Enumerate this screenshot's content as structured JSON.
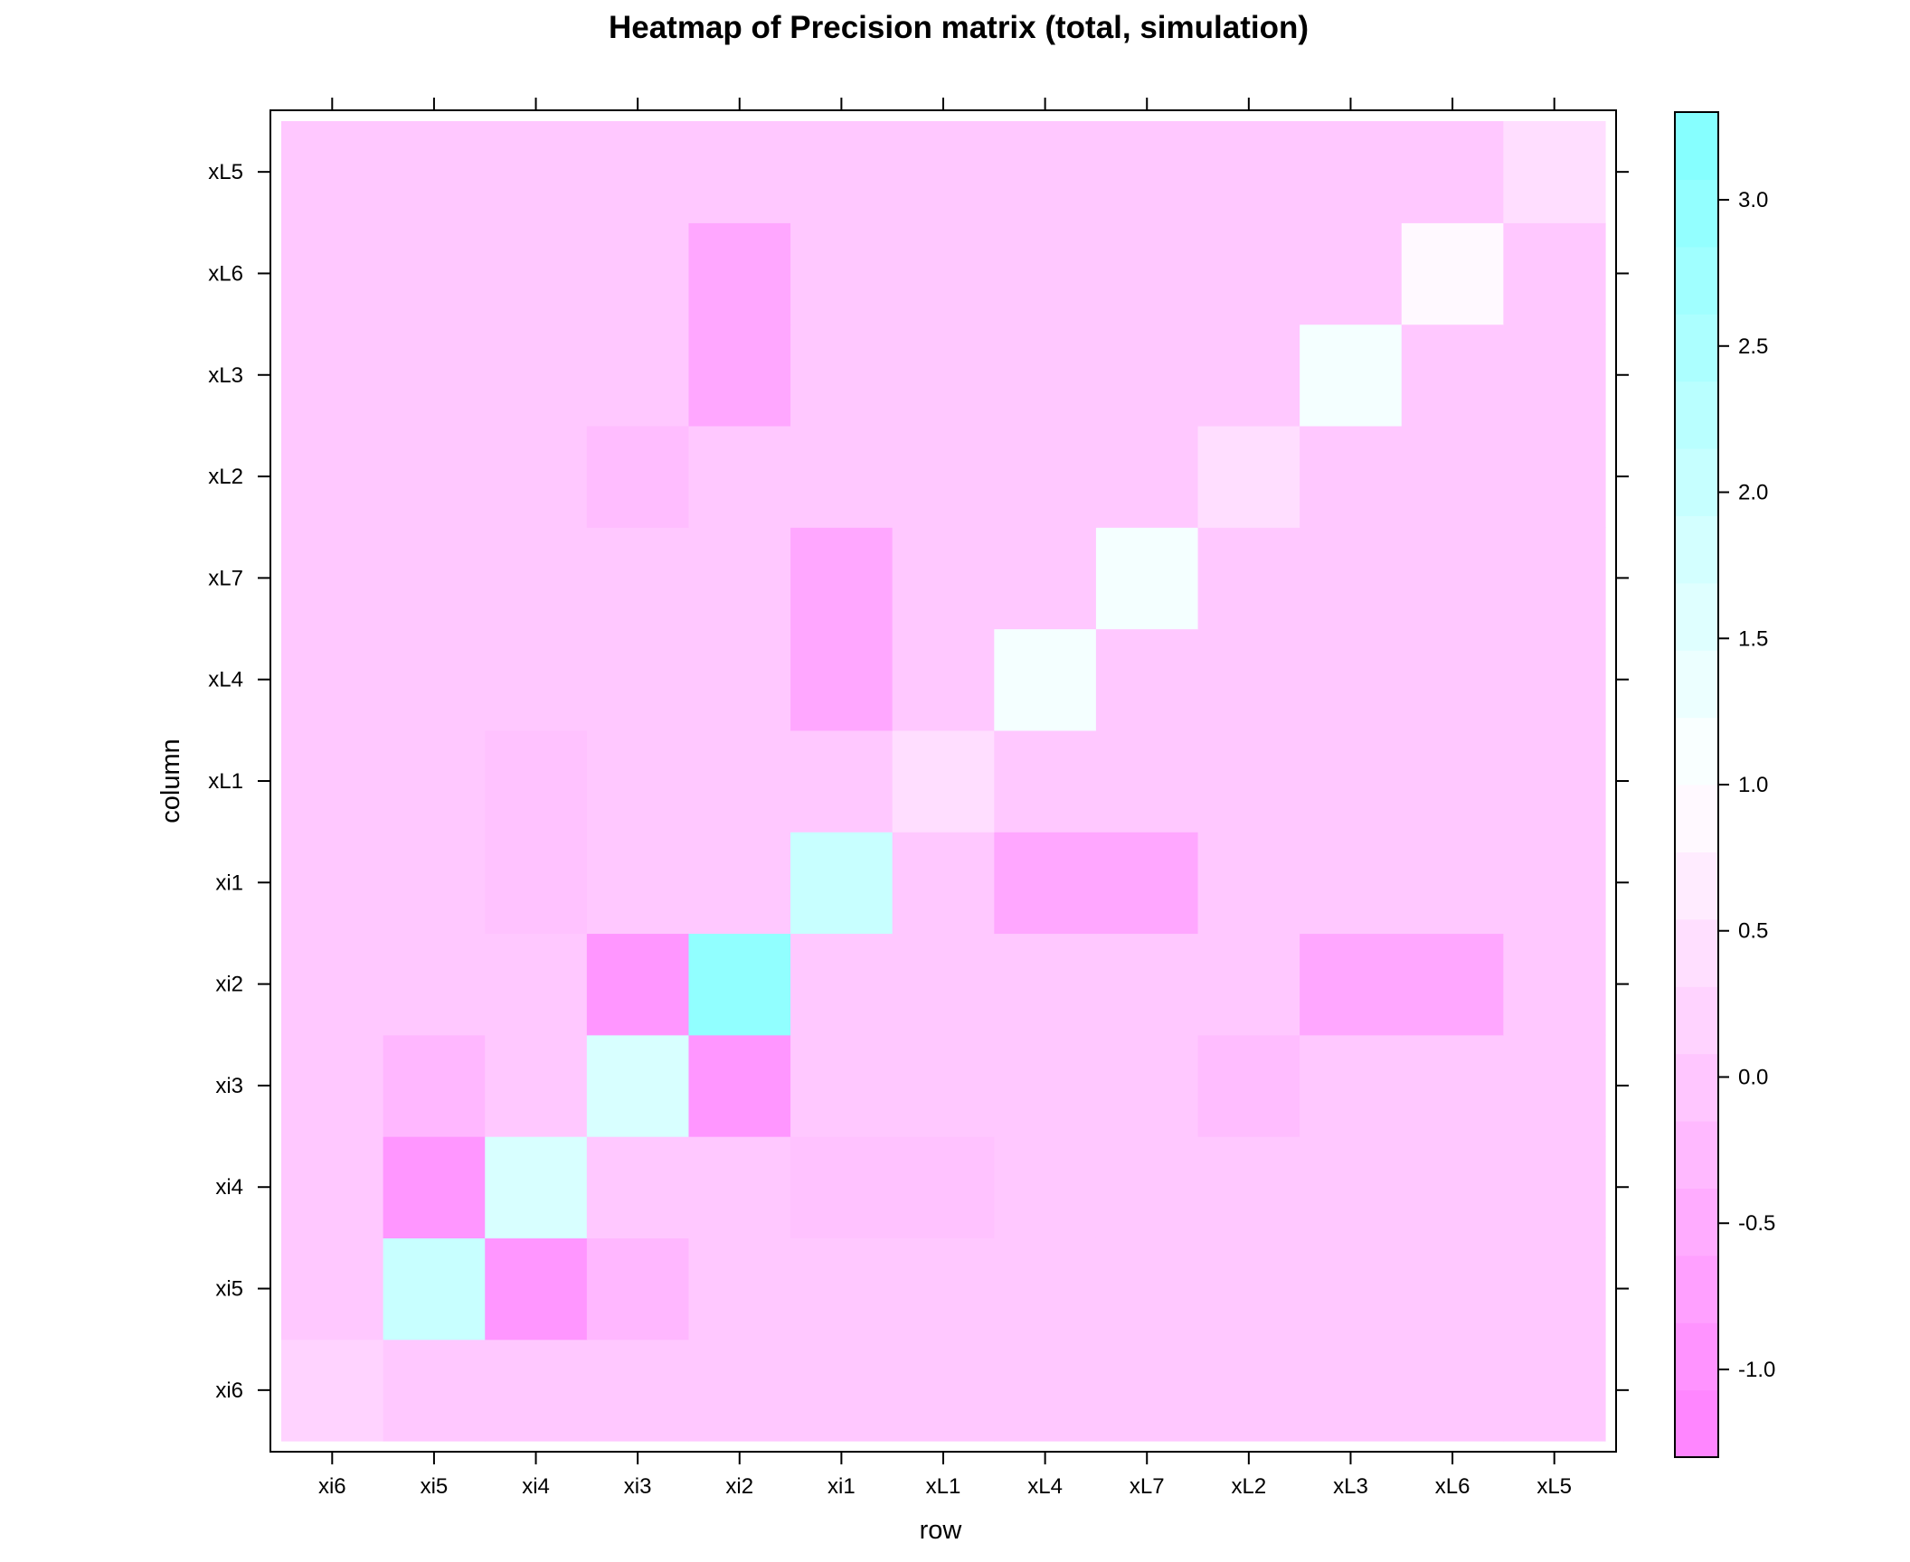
{
  "chart_data": {
    "type": "heatmap",
    "title": "Heatmap of Precision matrix (total, simulation)",
    "xlabel": "row",
    "ylabel": "column",
    "x_categories": [
      "xi6",
      "xi5",
      "xi4",
      "xi3",
      "xi2",
      "xi1",
      "xL1",
      "xL4",
      "xL7",
      "xL2",
      "xL3",
      "xL6",
      "xL5"
    ],
    "y_categories": [
      "xi6",
      "xi5",
      "xi4",
      "xi3",
      "xi2",
      "xi1",
      "xL1",
      "xL4",
      "xL7",
      "xL2",
      "xL3",
      "xL6",
      "xL5"
    ],
    "values": [
      [
        0.2,
        0.0,
        0.0,
        0.0,
        0.0,
        0.0,
        0.0,
        0.0,
        0.0,
        0.0,
        0.0,
        0.0,
        0.0
      ],
      [
        0.0,
        2.0,
        -0.9,
        -0.3,
        0.0,
        0.0,
        0.0,
        0.0,
        0.0,
        0.0,
        0.0,
        0.0,
        0.0
      ],
      [
        0.0,
        -0.9,
        1.7,
        0.0,
        0.0,
        -0.1,
        -0.1,
        0.0,
        0.0,
        0.0,
        0.0,
        0.0,
        0.0
      ],
      [
        0.0,
        -0.3,
        0.0,
        1.7,
        -0.9,
        0.0,
        0.0,
        0.0,
        0.0,
        -0.2,
        0.0,
        0.0,
        0.0
      ],
      [
        0.0,
        0.0,
        0.0,
        -0.9,
        3.0,
        0.0,
        0.0,
        0.0,
        0.0,
        0.0,
        -0.6,
        -0.6,
        0.0
      ],
      [
        0.0,
        0.0,
        -0.1,
        0.0,
        0.0,
        2.0,
        0.0,
        -0.6,
        -0.6,
        0.0,
        0.0,
        0.0,
        0.0
      ],
      [
        0.0,
        0.0,
        -0.1,
        0.0,
        0.0,
        0.0,
        0.4,
        0.0,
        0.0,
        0.0,
        0.0,
        0.0,
        0.0
      ],
      [
        0.0,
        0.0,
        0.0,
        0.0,
        0.0,
        -0.6,
        0.0,
        1.2,
        0.0,
        0.0,
        0.0,
        0.0,
        0.0
      ],
      [
        0.0,
        0.0,
        0.0,
        0.0,
        0.0,
        -0.6,
        0.0,
        0.0,
        1.2,
        0.0,
        0.0,
        0.0,
        0.0
      ],
      [
        0.0,
        0.0,
        0.0,
        -0.2,
        0.0,
        0.0,
        0.0,
        0.0,
        0.0,
        0.4,
        0.0,
        0.0,
        0.0
      ],
      [
        0.0,
        0.0,
        0.0,
        0.0,
        -0.6,
        0.0,
        0.0,
        0.0,
        0.0,
        0.0,
        1.2,
        0.0,
        0.0
      ],
      [
        0.0,
        0.0,
        0.0,
        0.0,
        -0.6,
        0.0,
        0.0,
        0.0,
        0.0,
        0.0,
        0.0,
        0.9,
        0.0
      ],
      [
        0.0,
        0.0,
        0.0,
        0.0,
        0.0,
        0.0,
        0.0,
        0.0,
        0.0,
        0.0,
        0.0,
        0.0,
        0.4
      ]
    ],
    "values_note_axes": "values[i][j]: i indexes y_categories (column), j indexes x_categories (row)",
    "colorbar": {
      "min": -1.3,
      "max": 3.3,
      "ticks": [
        -1.0,
        -0.5,
        0.0,
        0.5,
        1.0,
        1.5,
        2.0,
        2.5,
        3.0
      ],
      "tick_labels": [
        "-1.0",
        "-0.5",
        "0.0",
        "0.5",
        "1.0",
        "1.5",
        "2.0",
        "2.5",
        "3.0"
      ],
      "low_color": "#ff80ff",
      "mid_color": "#ffffff",
      "high_color": "#80ffff",
      "mid_value": 1.0,
      "legend_position": "right"
    }
  }
}
